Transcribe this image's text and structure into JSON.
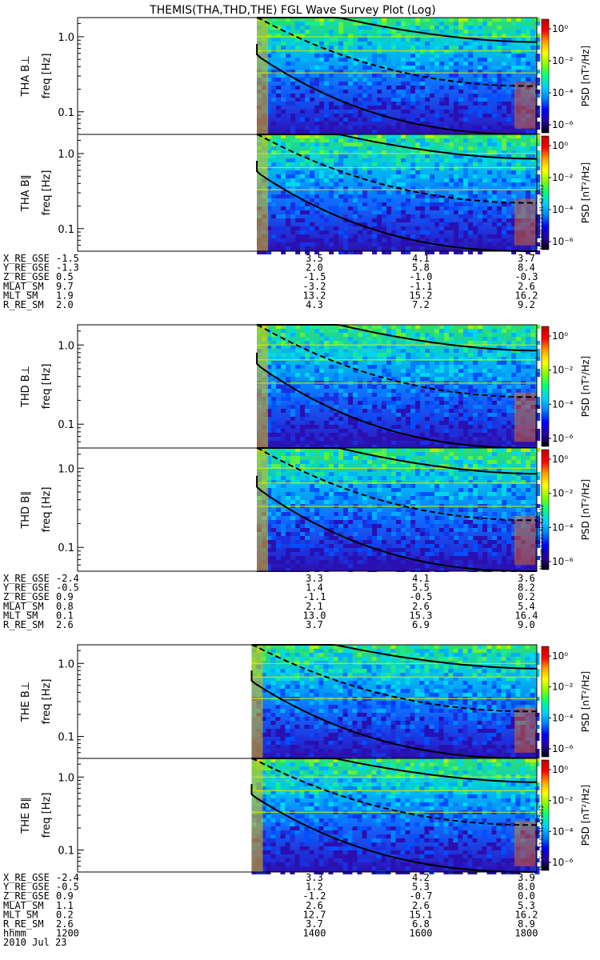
{
  "title": "THEMIS(THA,THD,THE) FGL Wave Survey Plot (Log)",
  "colorbar": {
    "label": "PSD [nT²/Hz]",
    "ticks": [
      "10⁰",
      "10⁻²",
      "10⁻⁴",
      "10⁻⁶"
    ],
    "colors": [
      "#000000",
      "#2b00a0",
      "#0000ff",
      "#0080ff",
      "#00d0ff",
      "#00ff80",
      "#80ff00",
      "#ffff00",
      "#ffa000",
      "#ff0000",
      "#c00000"
    ]
  },
  "stamp": "Mon Sep 17 01:31:42 2012",
  "chart_data": {
    "type": "heatmap",
    "yscale": "log",
    "ylabel": "freq [Hz]",
    "yticks": [
      "1.0",
      "0.1"
    ],
    "panels": [
      {
        "probe": "THA",
        "label": "THA B⊥",
        "data_start": 1310
      },
      {
        "probe": "THA",
        "label": "THA B∥",
        "data_start": 1310
      },
      {
        "probe": "THD",
        "label": "THD B⊥",
        "data_start": 1310
      },
      {
        "probe": "THD",
        "label": "THD B∥",
        "data_start": 1310
      },
      {
        "probe": "THE",
        "label": "THE B⊥",
        "data_start": 1300
      },
      {
        "probe": "THE",
        "label": "THE B∥",
        "data_start": 1300
      }
    ],
    "x": {
      "label": "hhmm",
      "range": [
        1200,
        1800
      ],
      "ticks": [
        "1200",
        "1400",
        "1600",
        "1800"
      ]
    },
    "date": "2010 Jul 23",
    "ephemeris_blocks": [
      {
        "probe": "THA",
        "rows": [
          {
            "name": "X_RE_GSE",
            "values": [
              "-1.5",
              "3.5",
              "4.1",
              "3.7"
            ]
          },
          {
            "name": "Y_RE_GSE",
            "values": [
              "-1.3",
              "2.0",
              "5.8",
              "8.4"
            ]
          },
          {
            "name": "Z_RE_GSE",
            "values": [
              "0.5",
              "-1.5",
              "-1.0",
              "-0.3"
            ]
          },
          {
            "name": "MLAT_SM",
            "values": [
              "9.7",
              "-3.2",
              "-1.1",
              "2.6"
            ]
          },
          {
            "name": "MLT_SM",
            "values": [
              "1.9",
              "13.2",
              "15.2",
              "16.2"
            ]
          },
          {
            "name": "R_RE_SM",
            "values": [
              "2.0",
              "4.3",
              "7.2",
              "9.2"
            ]
          }
        ]
      },
      {
        "probe": "THD",
        "rows": [
          {
            "name": "X_RE_GSE",
            "values": [
              "-2.4",
              "3.3",
              "4.1",
              "3.6"
            ]
          },
          {
            "name": "Y_RE_GSE",
            "values": [
              "-0.5",
              "1.4",
              "5.5",
              "8.2"
            ]
          },
          {
            "name": "Z_RE_GSE",
            "values": [
              "0.9",
              "-1.1",
              "-0.5",
              "0.2"
            ]
          },
          {
            "name": "MLAT_SM",
            "values": [
              "0.8",
              "2.1",
              "2.6",
              "5.4"
            ]
          },
          {
            "name": "MLT_SM",
            "values": [
              "0.1",
              "13.0",
              "15.3",
              "16.4"
            ]
          },
          {
            "name": "R_RE_SM",
            "values": [
              "2.6",
              "3.7",
              "6.9",
              "9.0"
            ]
          }
        ]
      },
      {
        "probe": "THE",
        "rows": [
          {
            "name": "X_RE_GSE",
            "values": [
              "-2.4",
              "3.3",
              "4.2",
              "3.9"
            ]
          },
          {
            "name": "Y_RE_GSE",
            "values": [
              "-0.5",
              "1.2",
              "5.3",
              "8.0"
            ]
          },
          {
            "name": "Z_RE_GSE",
            "values": [
              "0.9",
              "-1.2",
              "-0.7",
              "0.0"
            ]
          },
          {
            "name": "MLAT_SM",
            "values": [
              "1.1",
              "2.6",
              "2.6",
              "5.3"
            ]
          },
          {
            "name": "MLT_SM",
            "values": [
              "0.2",
              "12.7",
              "15.1",
              "16.2"
            ]
          },
          {
            "name": "R_RE_SM",
            "values": [
              "2.6",
              "3.7",
              "6.8",
              "8.9"
            ]
          }
        ]
      }
    ]
  }
}
